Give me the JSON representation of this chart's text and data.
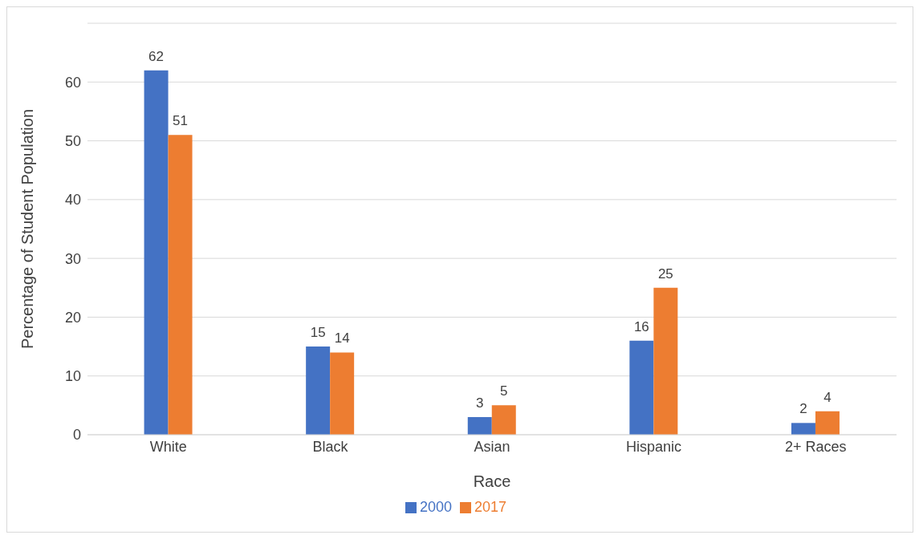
{
  "chart_data": {
    "type": "bar",
    "xlabel": "Race",
    "ylabel": "Percentage of Student Population",
    "categories": [
      "White",
      "Black",
      "Asian",
      "Hispanic",
      "2+ Races"
    ],
    "series": [
      {
        "name": "2000",
        "color": "#4472c4",
        "values": [
          62,
          15,
          3,
          16,
          2
        ]
      },
      {
        "name": "2017",
        "color": "#ed7d31",
        "values": [
          51,
          14,
          5,
          25,
          4
        ]
      }
    ],
    "ylim": [
      0,
      70
    ],
    "yticks": [
      0,
      10,
      20,
      30,
      40,
      50,
      60
    ],
    "grid": "y",
    "legend": "bottom",
    "data_labels": true
  }
}
